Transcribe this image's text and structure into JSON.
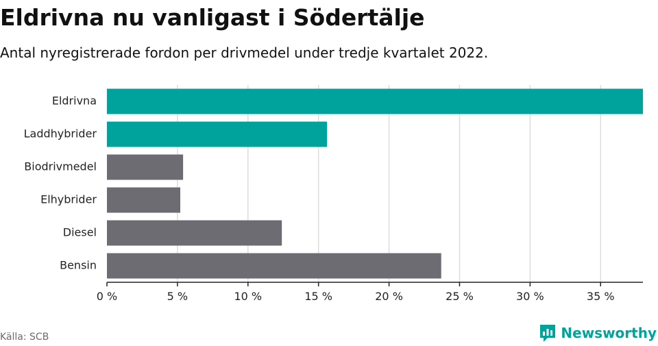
{
  "header": {
    "title": "Eldrivna nu vanligast i Södertälje",
    "subtitle": "Antal nyregistrerade fordon per drivmedel under tredje kvartalet 2022."
  },
  "footer": {
    "source": "Källa: SCB",
    "brand_name": "Newsworthy",
    "brand_icon": "newsworthy-logo-icon"
  },
  "colors": {
    "highlight": "#00a39b",
    "default": "#6e6c73",
    "grid": "#dcdcdc",
    "axis": "#222222"
  },
  "chart_data": {
    "type": "bar",
    "orientation": "horizontal",
    "categories": [
      "Eldrivna",
      "Laddhybrider",
      "Biodrivmedel",
      "Elhybrider",
      "Diesel",
      "Bensin"
    ],
    "values": [
      38.0,
      15.6,
      5.4,
      5.2,
      12.4,
      23.7
    ],
    "highlighted": [
      true,
      true,
      false,
      false,
      false,
      false
    ],
    "xlim": [
      0,
      38
    ],
    "xticks": [
      0,
      5,
      10,
      15,
      20,
      25,
      30,
      35
    ],
    "xtick_labels": [
      "0 %",
      "5 %",
      "10 %",
      "15 %",
      "20 %",
      "25 %",
      "30 %",
      "35 %"
    ],
    "grid": true,
    "legend": "none"
  }
}
